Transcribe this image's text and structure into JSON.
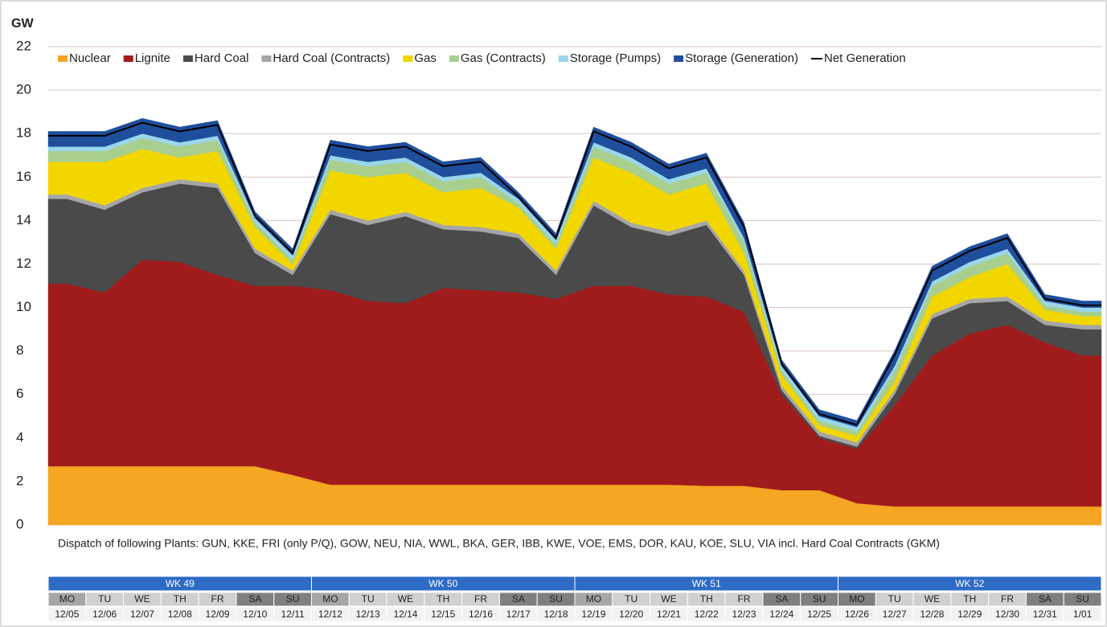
{
  "chart_data": {
    "type": "stacked_area",
    "y_label": "GW",
    "ylim": [
      0,
      22
    ],
    "yticks": [
      0,
      2,
      4,
      6,
      8,
      10,
      12,
      14,
      16,
      18,
      20,
      22
    ],
    "grid": true,
    "legend": "top",
    "categories": [
      "12/05",
      "12/06",
      "12/07",
      "12/08",
      "12/09",
      "12/10",
      "12/11",
      "12/12",
      "12/13",
      "12/14",
      "12/15",
      "12/16",
      "12/17",
      "12/18",
      "12/19",
      "12/20",
      "12/21",
      "12/22",
      "12/23",
      "12/24",
      "12/25",
      "12/26",
      "12/27",
      "12/28",
      "12/29",
      "12/30",
      "12/31",
      "1/01"
    ],
    "weekdays": [
      "MO",
      "TU",
      "WE",
      "TH",
      "FR",
      "SA",
      "SU",
      "MO",
      "TU",
      "WE",
      "TH",
      "FR",
      "SA",
      "SU",
      "MO",
      "TU",
      "WE",
      "TH",
      "FR",
      "SA",
      "SU",
      "MO",
      "TU",
      "WE",
      "TH",
      "FR",
      "SA",
      "SU"
    ],
    "weekday_colors": [
      "#a6a6a6",
      "#d0d0d0",
      "#d0d0d0",
      "#d0d0d0",
      "#d0d0d0",
      "#7f7f7f",
      "#7f7f7f",
      "#a6a6a6",
      "#d0d0d0",
      "#d0d0d0",
      "#d0d0d0",
      "#d0d0d0",
      "#7f7f7f",
      "#7f7f7f",
      "#a6a6a6",
      "#d0d0d0",
      "#d0d0d0",
      "#d0d0d0",
      "#d0d0d0",
      "#7f7f7f",
      "#7f7f7f",
      "#7f7f7f",
      "#d0d0d0",
      "#d0d0d0",
      "#d0d0d0",
      "#d0d0d0",
      "#7f7f7f",
      "#7f7f7f"
    ],
    "weeks": [
      "WK 49",
      "WK 50",
      "WK 51",
      "WK 52"
    ],
    "week_color": "#2e6bc4",
    "note": "Dispatch of following Plants: GUN, KKE, FRI (only P/Q), GOW, NEU, NIA, WWL, BKA, GER, IBB, KWE, VOE, EMS, DOR, KAU, KOE, SLU, VIA incl. Hard Coal Contracts (GKM)",
    "series": [
      {
        "name": "Nuclear",
        "color": "#f5a623",
        "values": [
          2.7,
          2.7,
          2.7,
          2.7,
          2.7,
          2.7,
          2.3,
          1.85,
          1.85,
          1.85,
          1.85,
          1.85,
          1.85,
          1.85,
          1.85,
          1.85,
          1.85,
          1.8,
          1.8,
          1.6,
          1.6,
          1.0,
          0.85,
          0.85,
          0.85,
          0.85,
          0.85,
          0.85
        ]
      },
      {
        "name": "Lignite",
        "color": "#a01c1c",
        "values": [
          8.4,
          8.0,
          9.5,
          9.4,
          8.8,
          8.3,
          8.7,
          8.95,
          8.45,
          8.35,
          9.05,
          8.95,
          8.85,
          8.55,
          9.15,
          9.15,
          8.75,
          8.7,
          8.0,
          4.4,
          2.4,
          2.5,
          4.65,
          6.95,
          7.95,
          8.35,
          7.55,
          6.95
        ]
      },
      {
        "name": "Hard Coal",
        "color": "#4a4a4a",
        "values": [
          3.9,
          3.8,
          3.1,
          3.6,
          4.0,
          1.5,
          0.5,
          3.5,
          3.5,
          4.0,
          2.7,
          2.7,
          2.5,
          1.1,
          3.7,
          2.7,
          2.7,
          3.3,
          1.7,
          0.2,
          0.1,
          0.1,
          0.5,
          1.7,
          1.4,
          1.1,
          0.8,
          1.2
        ]
      },
      {
        "name": "Hard Coal (Contracts)",
        "color": "#a6a6a6",
        "values": [
          0.2,
          0.2,
          0.2,
          0.2,
          0.2,
          0.2,
          0.2,
          0.2,
          0.2,
          0.2,
          0.2,
          0.2,
          0.2,
          0.2,
          0.2,
          0.2,
          0.2,
          0.2,
          0.2,
          0.2,
          0.2,
          0.2,
          0.2,
          0.2,
          0.2,
          0.2,
          0.2,
          0.2
        ]
      },
      {
        "name": "Gas",
        "color": "#f2d600",
        "values": [
          1.5,
          2.0,
          1.8,
          1.0,
          1.5,
          1.0,
          0.3,
          1.8,
          2.0,
          1.8,
          1.5,
          1.8,
          1.2,
          1.0,
          2.0,
          2.3,
          1.7,
          1.7,
          0.8,
          0.5,
          0.3,
          0.3,
          0.4,
          0.8,
          1.0,
          1.5,
          0.5,
          0.4
        ]
      },
      {
        "name": "Gas (Contracts)",
        "color": "#a8cf8e",
        "values": [
          0.5,
          0.5,
          0.5,
          0.5,
          0.5,
          0.2,
          0.2,
          0.5,
          0.5,
          0.5,
          0.5,
          0.5,
          0.2,
          0.2,
          0.5,
          0.5,
          0.5,
          0.5,
          0.5,
          0.2,
          0.2,
          0.2,
          0.5,
          0.5,
          0.5,
          0.5,
          0.2,
          0.2
        ]
      },
      {
        "name": "Storage (Pumps)",
        "color": "#9ad6ea",
        "values": [
          0.2,
          0.2,
          0.2,
          0.2,
          0.2,
          0.2,
          0.2,
          0.2,
          0.2,
          0.2,
          0.2,
          0.2,
          0.2,
          0.2,
          0.2,
          0.2,
          0.2,
          0.2,
          0.2,
          0.2,
          0.2,
          0.2,
          0.2,
          0.2,
          0.2,
          0.2,
          0.2,
          0.2
        ]
      },
      {
        "name": "Storage (Generation)",
        "color": "#1f4e9c",
        "values": [
          0.7,
          0.7,
          0.7,
          0.7,
          0.7,
          0.3,
          0.3,
          0.7,
          0.7,
          0.7,
          0.7,
          0.7,
          0.3,
          0.3,
          0.7,
          0.7,
          0.7,
          0.7,
          0.7,
          0.3,
          0.3,
          0.3,
          0.7,
          0.7,
          0.7,
          0.7,
          0.3,
          0.3
        ]
      }
    ],
    "net_generation": {
      "name": "Net Generation",
      "color": "#000000",
      "values": [
        17.9,
        17.9,
        18.5,
        18.1,
        18.4,
        14.2,
        12.5,
        17.5,
        17.2,
        17.4,
        16.5,
        16.7,
        15.1,
        13.2,
        18.1,
        17.4,
        16.4,
        16.9,
        13.7,
        7.4,
        5.1,
        4.6,
        7.8,
        11.7,
        12.6,
        13.2,
        10.4,
        10.1
      ]
    }
  }
}
